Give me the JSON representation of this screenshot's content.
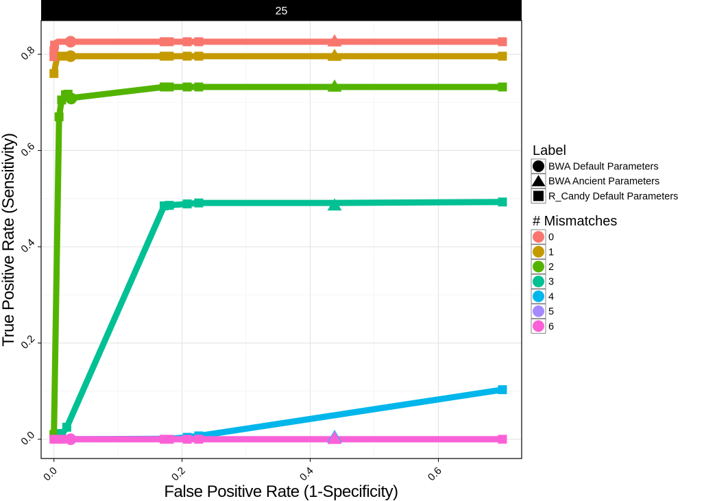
{
  "chart_data": {
    "type": "line",
    "panel_label": "25",
    "xlabel": "False Positive Rate (1-Specificity)",
    "ylabel": "True Positive Rate (Sensitivity)",
    "xlim": [
      -0.02,
      0.73
    ],
    "ylim": [
      -0.04,
      0.87
    ],
    "x_ticks": [
      0.0,
      0.2,
      0.4,
      0.6
    ],
    "x_tick_labels": [
      "0.0",
      "0.2",
      "0.4",
      "0.6"
    ],
    "y_ticks": [
      0.0,
      0.2,
      0.4,
      0.6,
      0.8
    ],
    "y_tick_labels": [
      "0.0",
      "0.2",
      "0.4",
      "0.6",
      "0.8"
    ],
    "grid": true,
    "legend_position": "right",
    "legends": [
      {
        "title": "Label",
        "kind": "shape",
        "items": [
          {
            "label": "BWA Default Parameters",
            "shape": "circle"
          },
          {
            "label": "BWA Ancient Parameters",
            "shape": "triangle"
          },
          {
            "label": "R_Candy Default Parameters",
            "shape": "square"
          }
        ]
      },
      {
        "title": "# Mismatches",
        "kind": "color",
        "items": [
          {
            "label": "0",
            "color": "#F8766D"
          },
          {
            "label": "1",
            "color": "#C49A00"
          },
          {
            "label": "2",
            "color": "#53B400"
          },
          {
            "label": "3",
            "color": "#00C094"
          },
          {
            "label": "4",
            "color": "#00B6EB"
          },
          {
            "label": "5",
            "color": "#A58AFF"
          },
          {
            "label": "6",
            "color": "#FB61D7"
          }
        ]
      }
    ],
    "series": [
      {
        "name": "0",
        "color": "#F8766D",
        "points": [
          [
            0.0,
            0.795
          ],
          [
            0.0,
            0.805
          ],
          [
            0.0,
            0.815
          ],
          [
            0.001,
            0.822
          ],
          [
            0.006,
            0.826
          ],
          [
            0.013,
            0.826
          ],
          [
            0.02,
            0.826
          ],
          [
            0.027,
            0.826
          ],
          [
            0.17,
            0.826
          ],
          [
            0.178,
            0.826
          ],
          [
            0.208,
            0.826
          ],
          [
            0.226,
            0.826
          ],
          [
            0.7,
            0.826
          ]
        ],
        "markers": [
          {
            "x": 0.026,
            "y": 0.826,
            "shape": "circle"
          },
          {
            "x": 0.438,
            "y": 0.826,
            "shape": "triangle"
          },
          {
            "x": 0.172,
            "y": 0.826,
            "shape": "square"
          },
          {
            "x": 0.18,
            "y": 0.826,
            "shape": "square"
          },
          {
            "x": 0.208,
            "y": 0.826,
            "shape": "square"
          },
          {
            "x": 0.226,
            "y": 0.826,
            "shape": "square"
          },
          {
            "x": 0.7,
            "y": 0.826,
            "shape": "square"
          },
          {
            "x": 0.0,
            "y": 0.795,
            "shape": "square"
          },
          {
            "x": 0.0,
            "y": 0.807,
            "shape": "square"
          },
          {
            "x": 0.001,
            "y": 0.819,
            "shape": "square"
          }
        ]
      },
      {
        "name": "1",
        "color": "#C49A00",
        "points": [
          [
            0.0,
            0.755
          ],
          [
            0.002,
            0.775
          ],
          [
            0.005,
            0.793
          ],
          [
            0.012,
            0.796
          ],
          [
            0.02,
            0.796
          ],
          [
            0.172,
            0.796
          ],
          [
            0.18,
            0.796
          ],
          [
            0.208,
            0.796
          ],
          [
            0.226,
            0.796
          ],
          [
            0.7,
            0.796
          ]
        ],
        "markers": [
          {
            "x": 0.026,
            "y": 0.796,
            "shape": "circle"
          },
          {
            "x": 0.438,
            "y": 0.796,
            "shape": "triangle"
          },
          {
            "x": 0.0,
            "y": 0.76,
            "shape": "square"
          },
          {
            "x": 0.012,
            "y": 0.796,
            "shape": "square"
          },
          {
            "x": 0.02,
            "y": 0.796,
            "shape": "square"
          },
          {
            "x": 0.172,
            "y": 0.796,
            "shape": "square"
          },
          {
            "x": 0.18,
            "y": 0.796,
            "shape": "square"
          },
          {
            "x": 0.208,
            "y": 0.796,
            "shape": "square"
          },
          {
            "x": 0.226,
            "y": 0.796,
            "shape": "square"
          },
          {
            "x": 0.7,
            "y": 0.796,
            "shape": "square"
          }
        ]
      },
      {
        "name": "2",
        "color": "#53B400",
        "points": [
          [
            0.0,
            0.01
          ],
          [
            0.008,
            0.67
          ],
          [
            0.012,
            0.705
          ],
          [
            0.018,
            0.716
          ],
          [
            0.022,
            0.717
          ],
          [
            0.026,
            0.709
          ],
          [
            0.172,
            0.732
          ],
          [
            0.18,
            0.732
          ],
          [
            0.208,
            0.732
          ],
          [
            0.226,
            0.732
          ],
          [
            0.7,
            0.732
          ]
        ],
        "markers": [
          {
            "x": 0.027,
            "y": 0.708,
            "shape": "circle"
          },
          {
            "x": 0.438,
            "y": 0.732,
            "shape": "triangle"
          },
          {
            "x": 0.0,
            "y": 0.01,
            "shape": "square"
          },
          {
            "x": 0.008,
            "y": 0.67,
            "shape": "square"
          },
          {
            "x": 0.012,
            "y": 0.705,
            "shape": "square"
          },
          {
            "x": 0.018,
            "y": 0.716,
            "shape": "square"
          },
          {
            "x": 0.022,
            "y": 0.717,
            "shape": "square"
          },
          {
            "x": 0.172,
            "y": 0.732,
            "shape": "square"
          },
          {
            "x": 0.18,
            "y": 0.732,
            "shape": "square"
          },
          {
            "x": 0.208,
            "y": 0.732,
            "shape": "square"
          },
          {
            "x": 0.226,
            "y": 0.732,
            "shape": "square"
          },
          {
            "x": 0.7,
            "y": 0.732,
            "shape": "square"
          }
        ]
      },
      {
        "name": "3",
        "color": "#00C094",
        "points": [
          [
            0.0,
            0.005
          ],
          [
            0.012,
            0.01
          ],
          [
            0.02,
            0.025
          ],
          [
            0.172,
            0.485
          ],
          [
            0.18,
            0.486
          ],
          [
            0.208,
            0.489
          ],
          [
            0.226,
            0.491
          ],
          [
            0.438,
            0.491
          ],
          [
            0.7,
            0.493
          ]
        ],
        "markers": [
          {
            "x": 0.438,
            "y": 0.485,
            "shape": "triangle"
          },
          {
            "x": 0.012,
            "y": 0.012,
            "shape": "square"
          },
          {
            "x": 0.02,
            "y": 0.025,
            "shape": "square"
          },
          {
            "x": 0.172,
            "y": 0.485,
            "shape": "square"
          },
          {
            "x": 0.18,
            "y": 0.486,
            "shape": "square"
          },
          {
            "x": 0.208,
            "y": 0.489,
            "shape": "square"
          },
          {
            "x": 0.226,
            "y": 0.491,
            "shape": "square"
          },
          {
            "x": 0.7,
            "y": 0.493,
            "shape": "square"
          }
        ]
      },
      {
        "name": "4",
        "color": "#00B6EB",
        "points": [
          [
            0.0,
            0.0
          ],
          [
            0.026,
            0.0
          ],
          [
            0.172,
            0.001
          ],
          [
            0.18,
            0.001
          ],
          [
            0.208,
            0.004
          ],
          [
            0.226,
            0.007
          ],
          [
            0.7,
            0.103
          ]
        ],
        "markers": [
          {
            "x": 0.438,
            "y": 0.004,
            "shape": "triangle"
          },
          {
            "x": 0.208,
            "y": 0.004,
            "shape": "square"
          },
          {
            "x": 0.226,
            "y": 0.007,
            "shape": "square"
          },
          {
            "x": 0.7,
            "y": 0.103,
            "shape": "square"
          }
        ]
      },
      {
        "name": "5",
        "color": "#A58AFF",
        "points": [
          [
            0.0,
            0.0
          ],
          [
            0.7,
            0.0
          ]
        ],
        "markers": [
          {
            "x": 0.438,
            "y": 0.002,
            "shape": "triangle"
          }
        ]
      },
      {
        "name": "6",
        "color": "#FB61D7",
        "points": [
          [
            0.0,
            0.0
          ],
          [
            0.7,
            0.0
          ]
        ],
        "markers": [
          {
            "x": 0.026,
            "y": 0.0,
            "shape": "circle"
          },
          {
            "x": 0.438,
            "y": 0.0,
            "shape": "triangle"
          },
          {
            "x": 0.0,
            "y": 0.0,
            "shape": "square"
          },
          {
            "x": 0.012,
            "y": 0.0,
            "shape": "square"
          },
          {
            "x": 0.172,
            "y": 0.0,
            "shape": "square"
          },
          {
            "x": 0.18,
            "y": 0.0,
            "shape": "square"
          },
          {
            "x": 0.208,
            "y": 0.0,
            "shape": "square"
          },
          {
            "x": 0.226,
            "y": 0.0,
            "shape": "square"
          },
          {
            "x": 0.7,
            "y": 0.0,
            "shape": "square"
          }
        ]
      }
    ]
  }
}
